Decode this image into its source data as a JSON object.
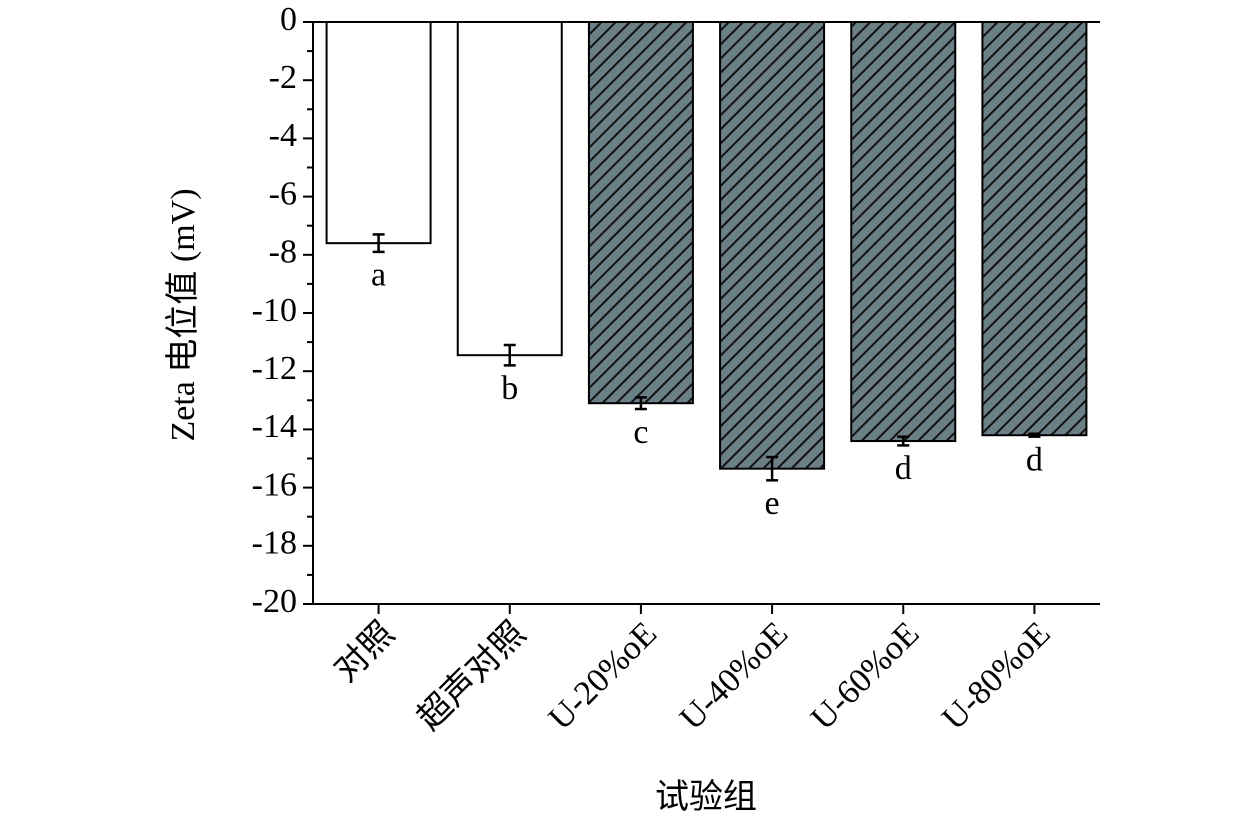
{
  "chart_data": {
    "type": "bar",
    "y_label": "Zeta 电位值 (mV)",
    "x_label": "试验组",
    "categories": [
      "对照",
      "超声对照",
      "U-20%oE",
      "U-40%oE",
      "U-60%oE",
      "U-80%oE"
    ],
    "values": [
      -7.6,
      -11.45,
      -13.1,
      -15.35,
      -14.4,
      -14.2
    ],
    "errors": [
      0.3,
      0.35,
      0.2,
      0.4,
      0.15,
      0.05
    ],
    "value_labels": [
      "a",
      "b",
      "c",
      "e",
      "d",
      "d"
    ],
    "colors": [
      "#ffffff",
      "#ffffff",
      "#6b7f86",
      "#6b7f86",
      "#6b7f86",
      "#6b7f86"
    ],
    "hatch": [
      false,
      false,
      true,
      true,
      true,
      true
    ],
    "ylim": [
      -20,
      0
    ],
    "yticks": [
      0,
      -2,
      -4,
      -6,
      -8,
      -10,
      -12,
      -14,
      -16,
      -18,
      -20
    ],
    "minor_yticks": [
      -1,
      -3,
      -5,
      -7,
      -9,
      -11,
      -13,
      -15,
      -17,
      -19
    ],
    "grid": false
  }
}
